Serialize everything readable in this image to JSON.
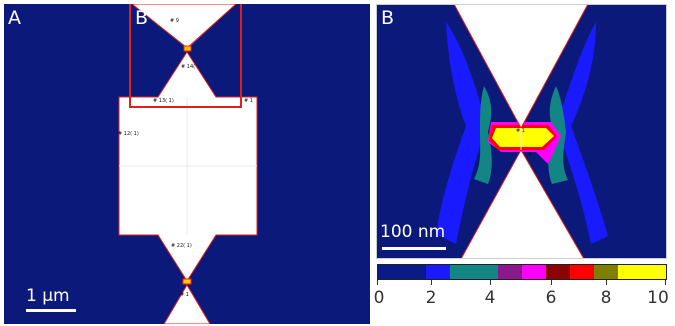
{
  "panel_a": {
    "letter": "A",
    "inset_letter": "B",
    "scale_label": "1 μm",
    "point_labels": [
      "# 9",
      "# 14(",
      "# 13( 1)",
      "# 1",
      "# 12( 1)",
      "# 22( 1)",
      "# 1"
    ]
  },
  "panel_b": {
    "letter": "B",
    "scale_label": "100 nm",
    "point_labels": [
      "# 1",
      "#"
    ]
  },
  "colorbar": {
    "ticks": [
      "0",
      "2",
      "4",
      "6",
      "8",
      "10"
    ],
    "colors": [
      "#0a1a86",
      "#1a1aff",
      "#138585",
      "#8a1a8a",
      "#ff00ff",
      "#8b0000",
      "#ff0000",
      "#808000",
      "#ffff00"
    ]
  },
  "colors": {
    "background_field": "#0b1a7a",
    "metal": "#ffffff",
    "outline": "#e0201c",
    "inset_box": "#e0201c"
  }
}
